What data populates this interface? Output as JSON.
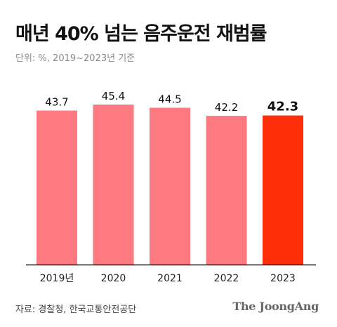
{
  "header": {
    "title": "매년 40% 넘는 음주운전 재범률",
    "subtitle": "단위: %, 2019~2023년 기준"
  },
  "footer": {
    "source": "자료: 경찰청, 한국교통안전공단",
    "brand": "The JoongAng"
  },
  "colors": {
    "bar": "#ff7a80",
    "highlight": "#ff2e0a",
    "axis": "#222222"
  },
  "chart_data": {
    "type": "bar",
    "categories": [
      "2019년",
      "2020",
      "2021",
      "2022",
      "2023"
    ],
    "values": [
      43.7,
      45.4,
      44.5,
      42.2,
      42.3
    ],
    "value_labels": [
      "43.7",
      "45.4",
      "44.5",
      "42.2",
      "42.3"
    ],
    "highlight_index": 4,
    "title": "매년 40% 넘는 음주운전 재범률",
    "subtitle": "단위: %, 2019~2023년 기준",
    "xlabel": "",
    "ylabel": "",
    "ylim": [
      0,
      45.4
    ],
    "grid": false,
    "legend": "none"
  }
}
